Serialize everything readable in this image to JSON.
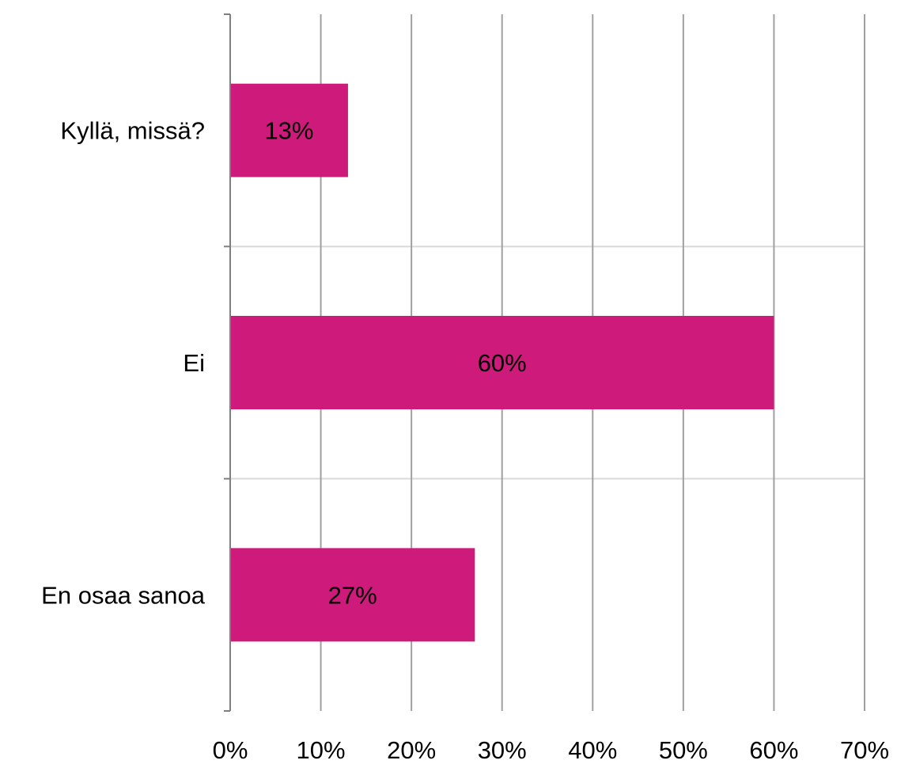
{
  "chart_data": {
    "type": "bar",
    "orientation": "horizontal",
    "categories": [
      "Kyllä, missä?",
      "Ei",
      "En osaa sanoa"
    ],
    "values": [
      13,
      60,
      27
    ],
    "data_labels": [
      "13%",
      "60%",
      "27%"
    ],
    "title": "",
    "xlabel": "",
    "ylabel": "",
    "xlim": [
      0,
      70
    ],
    "x_ticks": [
      0,
      10,
      20,
      30,
      40,
      50,
      60,
      70
    ],
    "x_tick_labels": [
      "0%",
      "10%",
      "20%",
      "30%",
      "40%",
      "50%",
      "60%",
      "70%"
    ],
    "grid": true,
    "legend": "none",
    "colors": {
      "bar": "#CE1A7A",
      "grid": "#A0A0A0",
      "axis": "#7F7F7F",
      "separator": "#D9D9D9",
      "text": "#000000"
    }
  }
}
